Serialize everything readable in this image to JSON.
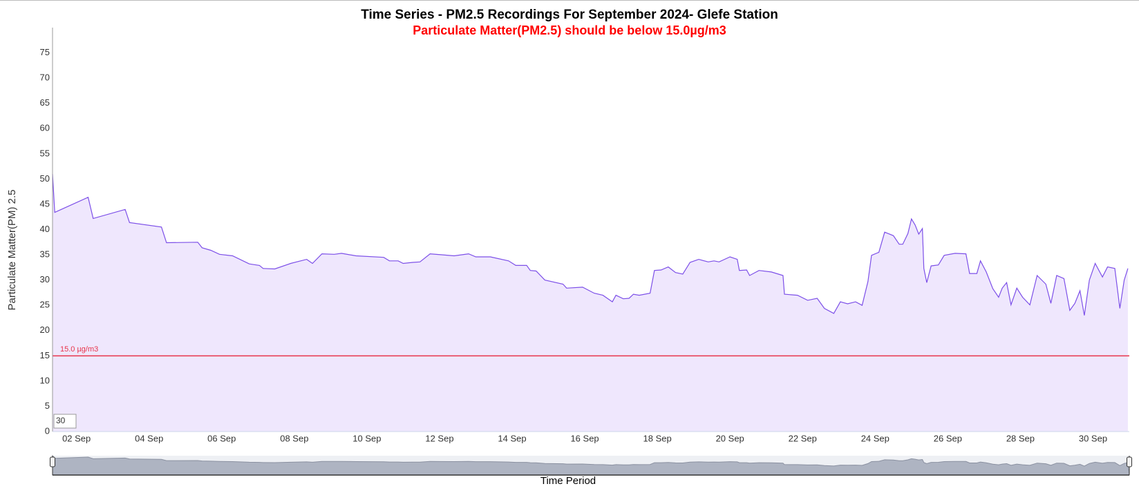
{
  "chart_data": {
    "type": "area",
    "title": "Time Series - PM2.5 Recordings For September 2024- Glefe Station",
    "subtitle": "Particulate Matter(PM2.5) should be below 15.0µg/m3",
    "y_label": "Particulate Matter(PM) 2.5",
    "x_label": "Time Period",
    "range_input": "30",
    "color": "#7c4fe8",
    "fill_color": "#efe7fd",
    "grid": false,
    "threshold": {
      "value": 15,
      "label": "15.0 µg/m3",
      "color": "#e8334a"
    },
    "xlim": [
      1.34,
      31.0
    ],
    "xticks": [
      {
        "value": 2,
        "label": "02 Sep"
      },
      {
        "value": 4,
        "label": "04 Sep"
      },
      {
        "value": 6,
        "label": "06 Sep"
      },
      {
        "value": 8,
        "label": "08 Sep"
      },
      {
        "value": 10,
        "label": "10 Sep"
      },
      {
        "value": 12,
        "label": "12 Sep"
      },
      {
        "value": 14,
        "label": "14 Sep"
      },
      {
        "value": 16,
        "label": "16 Sep"
      },
      {
        "value": 18,
        "label": "18 Sep"
      },
      {
        "value": 20,
        "label": "20 Sep"
      },
      {
        "value": 22,
        "label": "22 Sep"
      },
      {
        "value": 24,
        "label": "24 Sep"
      },
      {
        "value": 26,
        "label": "26 Sep"
      },
      {
        "value": 28,
        "label": "28 Sep"
      },
      {
        "value": 30,
        "label": "30 Sep"
      }
    ],
    "ylim": [
      0,
      80
    ],
    "yticks": [
      0,
      5,
      10,
      15,
      20,
      25,
      30,
      35,
      40,
      45,
      50,
      55,
      60,
      65,
      70,
      75
    ],
    "x": [
      1.34,
      1.4,
      2.32,
      2.46,
      3.34,
      3.46,
      4.34,
      4.48,
      5.34,
      5.46,
      5.7,
      5.94,
      6.3,
      6.76,
      7.04,
      7.14,
      7.46,
      7.9,
      8.34,
      8.5,
      8.76,
      9.1,
      9.3,
      9.7,
      10.46,
      10.62,
      10.86,
      11.0,
      11.26,
      11.46,
      11.74,
      12.4,
      12.8,
      13.0,
      13.4,
      13.9,
      14.1,
      14.4,
      14.5,
      14.66,
      14.9,
      15.4,
      15.5,
      15.94,
      16.26,
      16.5,
      16.76,
      16.86,
      17.06,
      17.22,
      17.34,
      17.5,
      17.8,
      17.92,
      18.1,
      18.3,
      18.5,
      18.7,
      18.9,
      19.14,
      19.4,
      19.56,
      19.7,
      20.0,
      20.2,
      20.26,
      20.46,
      20.54,
      20.8,
      21.14,
      21.46,
      21.5,
      21.86,
      22.14,
      22.4,
      22.6,
      22.86,
      23.04,
      23.24,
      23.46,
      23.64,
      23.8,
      23.9,
      24.1,
      24.26,
      24.5,
      24.66,
      24.76,
      24.9,
      25.0,
      25.1,
      25.2,
      25.3,
      25.34,
      25.42,
      25.54,
      25.74,
      25.9,
      26.2,
      26.5,
      26.6,
      26.8,
      26.9,
      27.06,
      27.24,
      27.4,
      27.5,
      27.62,
      27.74,
      27.9,
      28.06,
      28.26,
      28.46,
      28.7,
      28.84,
      29.0,
      29.2,
      29.36,
      29.5,
      29.64,
      29.76,
      29.9,
      30.06,
      30.26,
      30.4,
      30.6,
      30.74,
      30.86,
      30.96
    ],
    "values": [
      51.0,
      43.4,
      46.4,
      42.2,
      44.0,
      41.4,
      40.5,
      37.4,
      37.5,
      36.4,
      35.9,
      35.1,
      34.8,
      33.2,
      32.9,
      32.3,
      32.2,
      33.3,
      34.1,
      33.3,
      35.2,
      35.1,
      35.3,
      34.8,
      34.5,
      33.8,
      33.8,
      33.3,
      33.5,
      33.6,
      35.2,
      34.8,
      35.2,
      34.6,
      34.6,
      33.8,
      32.9,
      32.9,
      31.9,
      31.8,
      30.0,
      29.2,
      28.4,
      28.6,
      27.4,
      27.0,
      25.7,
      27.0,
      26.3,
      26.4,
      27.2,
      27.0,
      27.4,
      31.9,
      32.0,
      32.6,
      31.5,
      31.2,
      33.5,
      34.1,
      33.6,
      33.8,
      33.6,
      34.6,
      34.1,
      31.9,
      32.0,
      30.9,
      31.9,
      31.6,
      30.9,
      27.2,
      27.0,
      26.0,
      26.4,
      24.4,
      23.4,
      25.7,
      25.3,
      25.7,
      25.0,
      29.7,
      34.9,
      35.5,
      39.5,
      38.8,
      37.1,
      37.1,
      39.2,
      42.1,
      40.9,
      39.1,
      40.2,
      32.3,
      29.5,
      32.8,
      33.0,
      34.9,
      35.3,
      35.2,
      31.3,
      31.3,
      33.8,
      31.6,
      28.3,
      26.6,
      28.4,
      29.5,
      25.1,
      28.4,
      26.6,
      25.1,
      30.9,
      29.2,
      25.4,
      30.9,
      30.3,
      24.0,
      25.4,
      27.9,
      23.0,
      30.0,
      33.3,
      30.6,
      32.6,
      32.3,
      24.4,
      30.0,
      32.3
    ]
  }
}
